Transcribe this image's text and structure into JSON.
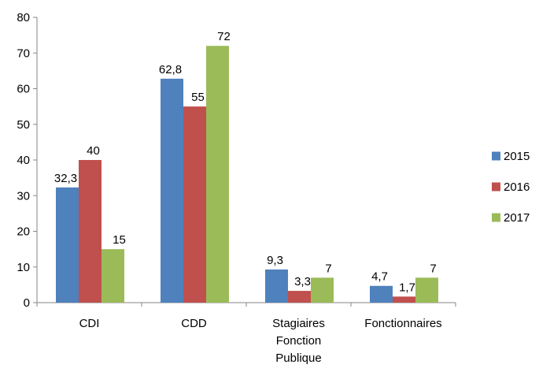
{
  "chart_data": {
    "type": "bar",
    "title": "",
    "xlabel": "",
    "ylabel": "",
    "categories": [
      [
        "CDI"
      ],
      [
        "CDD"
      ],
      [
        "Stagiaires",
        "Fonction",
        "Publique"
      ],
      [
        "Fonctionnaires"
      ]
    ],
    "series": [
      {
        "name": "2015",
        "color": "#4f81bd",
        "values": [
          32.3,
          62.8,
          9.3,
          4.7
        ],
        "labels": [
          "32,3",
          "62,8",
          "9,3",
          "4,7"
        ]
      },
      {
        "name": "2016",
        "color": "#c0504d",
        "values": [
          40,
          55,
          3.3,
          1.7
        ],
        "labels": [
          "40",
          "55",
          "3,3",
          "1,7"
        ]
      },
      {
        "name": "2017",
        "color": "#9bbb59",
        "values": [
          15,
          72,
          7,
          7
        ],
        "labels": [
          "15",
          "72",
          "7",
          "7"
        ]
      }
    ],
    "ylim": [
      0,
      80
    ],
    "yticks": [
      0,
      10,
      20,
      30,
      40,
      50,
      60,
      70,
      80
    ],
    "grid": false,
    "legend_position": "right"
  }
}
